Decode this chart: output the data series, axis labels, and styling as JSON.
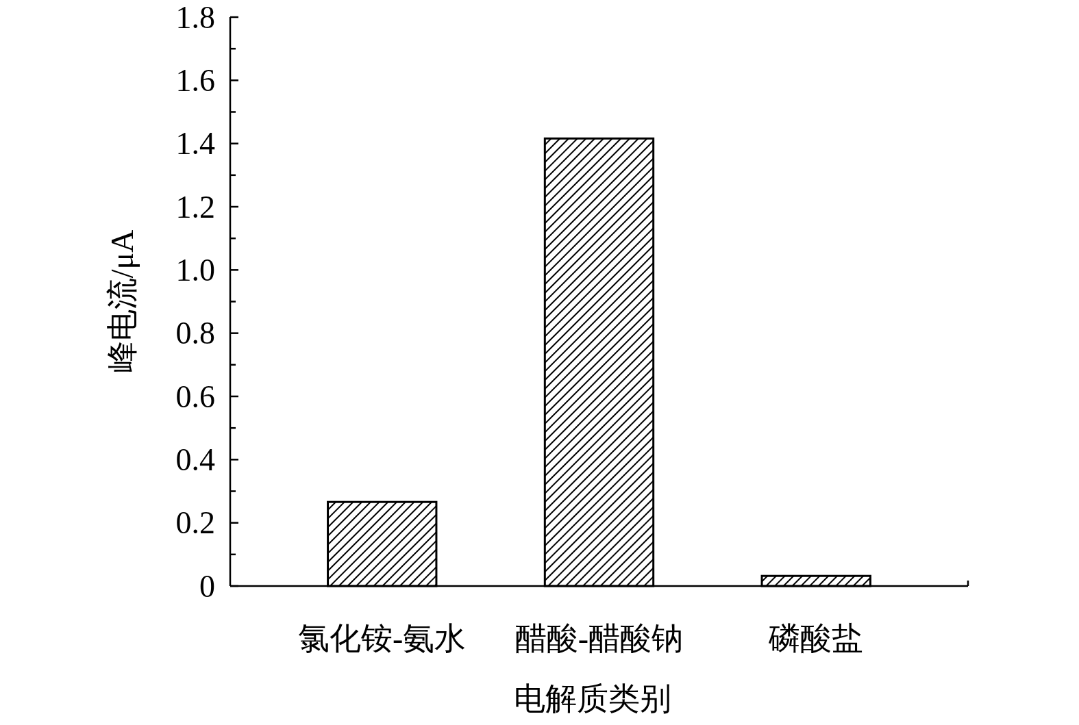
{
  "chart_data": {
    "type": "bar",
    "xlabel": "电解质类别",
    "ylabel": "峰电流/μA",
    "categories": [
      "氯化铵-氨水",
      "醋酸-醋酸钠",
      "磷酸盐"
    ],
    "values": [
      0.266,
      1.416,
      0.032
    ],
    "color": "#000000",
    "ylim": [
      0,
      1.8
    ],
    "yticks": [
      0,
      {
        "value": 0.1,
        "label": null
      },
      0.2,
      {
        "value": 0.3,
        "label": null
      },
      0.4,
      {
        "value": 0.5,
        "label": null
      },
      0.6,
      {
        "value": 0.7,
        "label": null
      },
      0.8,
      {
        "value": 0.9,
        "label": null
      },
      {
        "value": 1.0,
        "label": "1.0"
      },
      {
        "value": 1.1,
        "label": null
      },
      1.2,
      {
        "value": 1.3,
        "label": null
      },
      1.4,
      {
        "value": 1.5,
        "label": null
      },
      1.6,
      {
        "value": 1.7,
        "label": null
      },
      1.8
    ],
    "grid": false
  }
}
